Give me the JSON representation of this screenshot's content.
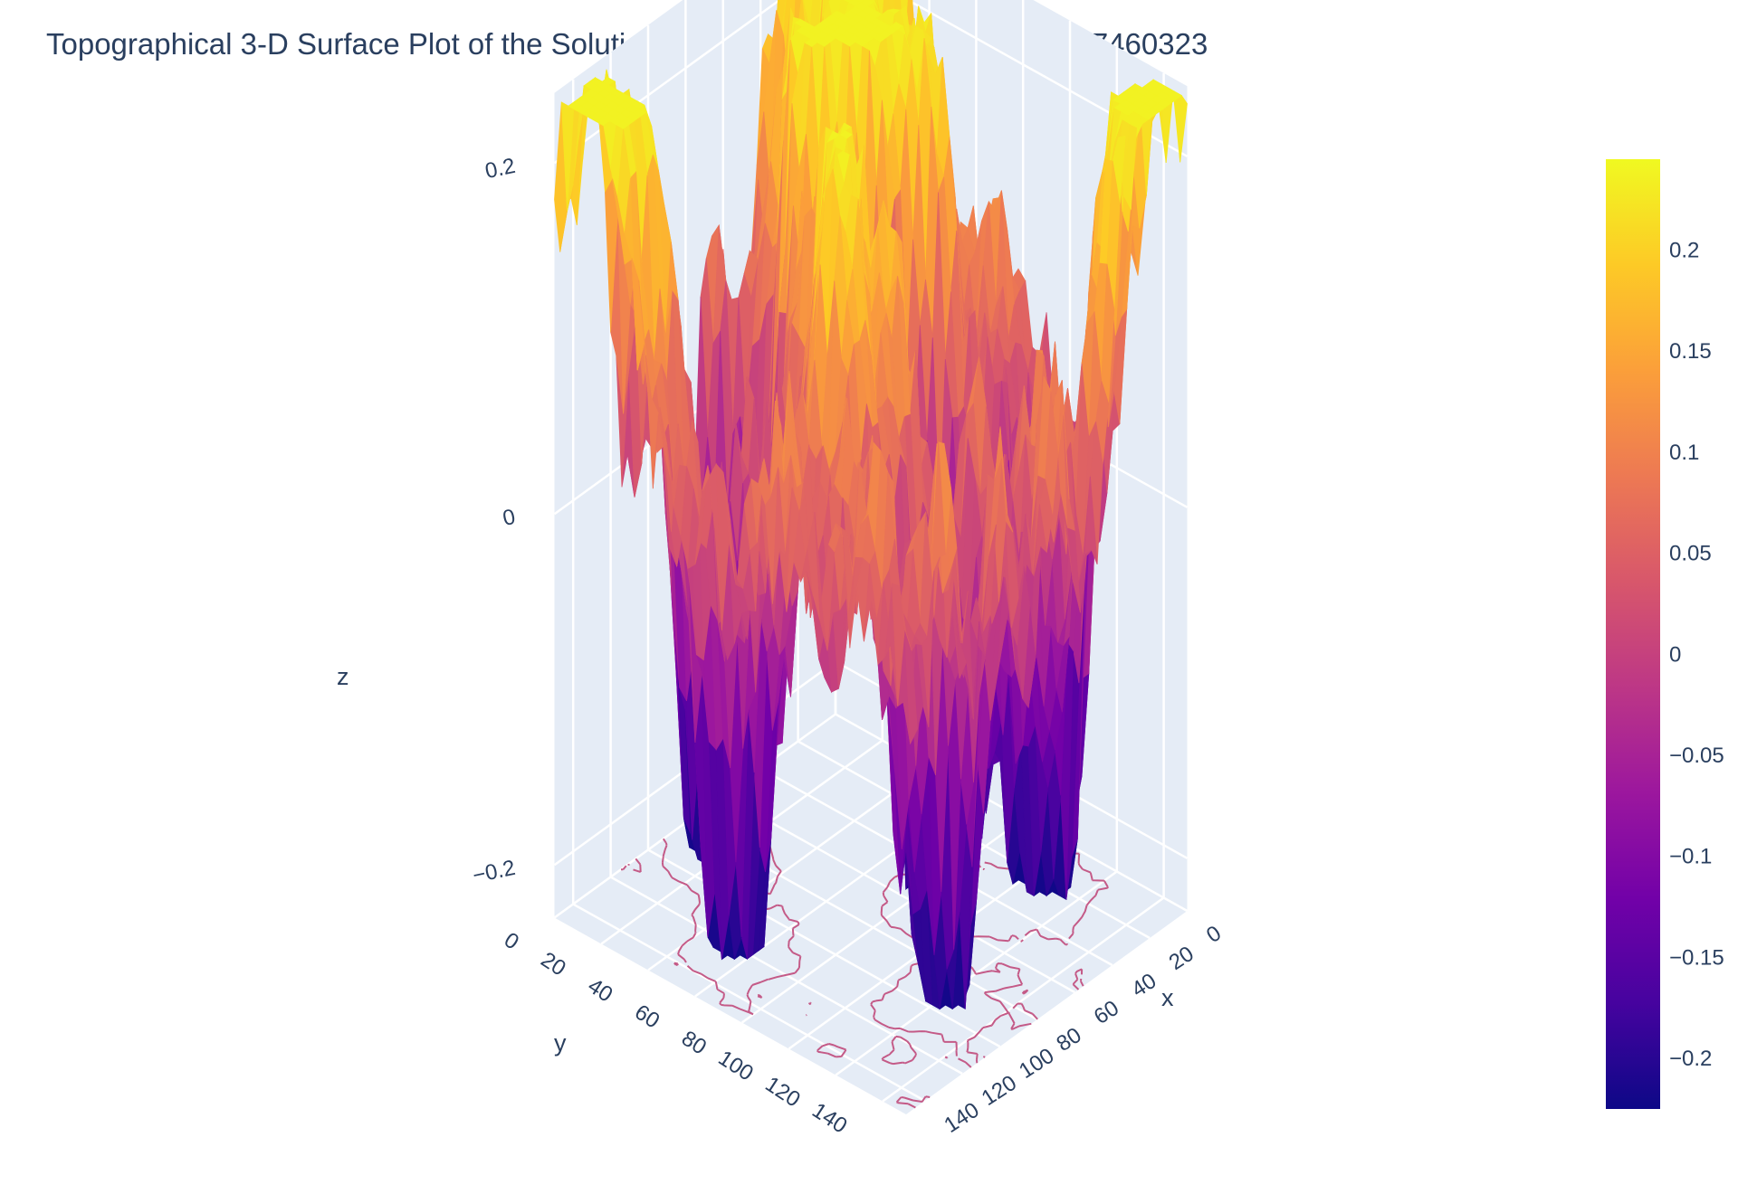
{
  "title": "Topographical 3-D Surface Plot of the Solution with Contours at t=20.317460317460323",
  "chart_data": {
    "type": "surface",
    "title": "Topographical 3-D Surface Plot of the Solution with Contours at t=20.317460317460323",
    "xlabel": "x",
    "ylabel": "y",
    "zlabel": "z",
    "x_ticks": [
      "0",
      "20",
      "40",
      "60",
      "80",
      "100",
      "120",
      "140"
    ],
    "y_ticks": [
      "0",
      "20",
      "40",
      "60",
      "80",
      "100",
      "120",
      "140"
    ],
    "z_ticks": [
      "−0.2",
      "0",
      "0.2"
    ],
    "x_range": [
      0,
      150
    ],
    "y_range": [
      0,
      150
    ],
    "z_range": [
      -0.23,
      0.24
    ],
    "colorscale": "plasma",
    "colorbar": {
      "ticks": [
        "0.2",
        "0.15",
        "0.1",
        "0.05",
        "0",
        "−0.05",
        "−0.1",
        "−0.15",
        "−0.2"
      ],
      "tick_values": [
        0.2,
        0.15,
        0.1,
        0.05,
        0,
        -0.05,
        -0.1,
        -0.15,
        -0.2
      ],
      "range": [
        -0.225,
        0.245
      ],
      "colors": [
        "#0d0887",
        "#46039f",
        "#7201a8",
        "#9c179e",
        "#bd3786",
        "#d8576b",
        "#ed7953",
        "#fb9f3a",
        "#fdca26",
        "#f0f921"
      ]
    },
    "contours": {
      "projection": "z",
      "color": "#c45a87"
    },
    "grid": true,
    "background": "#e5ecf6",
    "legend": "none"
  }
}
